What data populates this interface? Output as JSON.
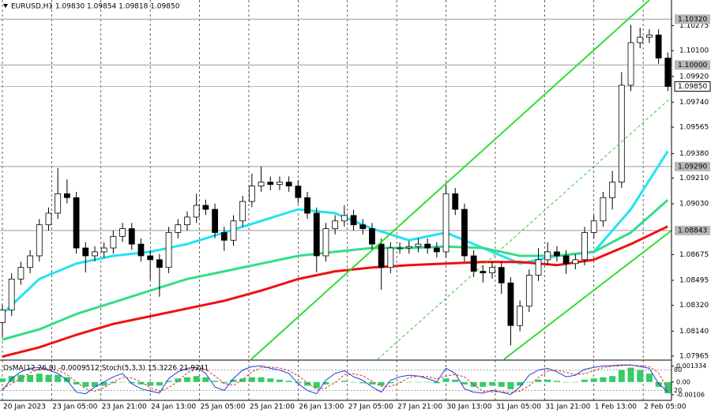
{
  "chart_data": {
    "type": "candlestick",
    "title": "EURUSD,H1  1.09830 1.09854 1.09818 1.09850",
    "indicator_title": "OsMA(12,26,9) -0.0009512  Stoch(5,3,3) 15.3226 21.9241",
    "hours": [
      0,
      3,
      6,
      9,
      12,
      15,
      18,
      21,
      24,
      27,
      30,
      33,
      36,
      39,
      42,
      45,
      48,
      51,
      54,
      57,
      60,
      63,
      66,
      69,
      72,
      75,
      78,
      81,
      84,
      87,
      90,
      93,
      96,
      99,
      102,
      105,
      108,
      111,
      114,
      117,
      120,
      123,
      126,
      129,
      132,
      135,
      138,
      141,
      144,
      147,
      150,
      153,
      156,
      159,
      162,
      165,
      168,
      171,
      174,
      177,
      180,
      183,
      186,
      189,
      192,
      195,
      198,
      201,
      204,
      207,
      210,
      213,
      216
    ],
    "open": [
      1.082,
      1.08287,
      1.08504,
      1.08585,
      1.08666,
      1.08883,
      1.08964,
      1.091,
      1.09073,
      1.08721,
      1.08666,
      1.08694,
      1.08721,
      1.08802,
      1.08856,
      1.08748,
      1.08666,
      1.08639,
      1.08585,
      1.08829,
      1.08883,
      1.08937,
      1.09019,
      1.08991,
      1.08829,
      1.08775,
      1.0891,
      1.09046,
      1.09154,
      1.09181,
      1.09165,
      1.09181,
      1.09154,
      1.09073,
      1.08964,
      1.08666,
      1.08856,
      1.0891,
      1.08948,
      1.08883,
      1.08856,
      1.08748,
      1.08585,
      1.08721,
      1.08721,
      1.08731,
      1.08748,
      1.08721,
      1.08694,
      1.091,
      1.08991,
      1.08666,
      1.08558,
      1.08547,
      1.08585,
      1.08477,
      1.08179,
      1.08314,
      1.08531,
      1.08639,
      1.08694,
      1.08666,
      1.08612,
      1.08639,
      1.08829,
      1.0891,
      1.09073,
      1.09181,
      1.09858,
      1.10156,
      1.10194,
      1.1021,
      1.10048
    ],
    "high": [
      1.08327,
      1.08544,
      1.08625,
      1.08706,
      1.08923,
      1.09004,
      1.0928,
      1.092,
      1.09113,
      1.08761,
      1.08734,
      1.08761,
      1.08842,
      1.08896,
      1.08896,
      1.08788,
      1.08706,
      1.08679,
      1.08869,
      1.08923,
      1.08977,
      1.091,
      1.09059,
      1.09031,
      1.08869,
      1.0895,
      1.09086,
      1.0924,
      1.0929,
      1.09221,
      1.09221,
      1.09221,
      1.09194,
      1.09113,
      1.09004,
      1.08896,
      1.0895,
      1.0902,
      1.08988,
      1.08923,
      1.08896,
      1.08788,
      1.08761,
      1.08761,
      1.08771,
      1.08788,
      1.08788,
      1.08761,
      1.0916,
      1.0914,
      1.09031,
      1.08706,
      1.08598,
      1.08625,
      1.08625,
      1.08517,
      1.08354,
      1.08571,
      1.0872,
      1.0876,
      1.08734,
      1.08706,
      1.08679,
      1.08869,
      1.0895,
      1.09113,
      1.0926,
      1.0995,
      1.1028,
      1.1026,
      1.1025,
      1.1025,
      1.10088
    ],
    "low": [
      1.081,
      1.08247,
      1.08464,
      1.08545,
      1.08626,
      1.08843,
      1.08924,
      1.09033,
      1.08681,
      1.0855,
      1.08626,
      1.08654,
      1.08681,
      1.08762,
      1.08708,
      1.08626,
      1.085,
      1.0838,
      1.08545,
      1.08789,
      1.08843,
      1.08897,
      1.08951,
      1.08789,
      1.087,
      1.08735,
      1.0887,
      1.09006,
      1.09114,
      1.09125,
      1.09125,
      1.09114,
      1.09033,
      1.08924,
      1.0855,
      1.08626,
      1.08816,
      1.0887,
      1.08843,
      1.08816,
      1.08708,
      1.0843,
      1.08545,
      1.08681,
      1.08681,
      1.08691,
      1.08681,
      1.08654,
      1.08654,
      1.08951,
      1.08626,
      1.08518,
      1.0848,
      1.08507,
      1.084,
      1.0804,
      1.08139,
      1.08274,
      1.08491,
      1.08599,
      1.08626,
      1.0854,
      1.08572,
      1.08599,
      1.08789,
      1.0887,
      1.0899,
      1.09141,
      1.09818,
      1.10116,
      1.10154,
      1.10008,
      1.09818
    ],
    "close": [
      1.08287,
      1.08504,
      1.08585,
      1.08666,
      1.08883,
      1.08964,
      1.091,
      1.09073,
      1.08721,
      1.08666,
      1.08694,
      1.08721,
      1.08802,
      1.08856,
      1.08748,
      1.08666,
      1.08639,
      1.08585,
      1.08829,
      1.08883,
      1.08937,
      1.09019,
      1.08991,
      1.08829,
      1.08775,
      1.0891,
      1.09046,
      1.09154,
      1.09181,
      1.09165,
      1.09181,
      1.09154,
      1.09073,
      1.08964,
      1.08666,
      1.08856,
      1.0891,
      1.08948,
      1.08883,
      1.08856,
      1.08748,
      1.08585,
      1.08721,
      1.08721,
      1.08731,
      1.08748,
      1.08721,
      1.08694,
      1.091,
      1.08991,
      1.08666,
      1.08558,
      1.08547,
      1.08585,
      1.08477,
      1.08179,
      1.08314,
      1.08531,
      1.08639,
      1.08694,
      1.08666,
      1.08612,
      1.08639,
      1.08829,
      1.0891,
      1.09073,
      1.09181,
      1.09858,
      1.10156,
      1.10194,
      1.1021,
      1.10048,
      1.0985
    ],
    "up_color": "#ffffff",
    "down_color": "#000000",
    "ma_hours": [
      0,
      12,
      24,
      36,
      48,
      60,
      72,
      84,
      96,
      108,
      120,
      132,
      144,
      156,
      168,
      180,
      192,
      204,
      216
    ],
    "series": [
      {
        "color": "#22e3f0",
        "values": [
          1.0826,
          1.08504,
          1.08612,
          1.08666,
          1.08694,
          1.08748,
          1.08829,
          1.0891,
          1.08991,
          1.08964,
          1.08856,
          1.08775,
          1.08829,
          1.08721,
          1.08612,
          1.08666,
          1.08694,
          1.08991,
          1.09398
        ]
      },
      {
        "color": "#33dd88",
        "values": [
          1.08081,
          1.08152,
          1.0826,
          1.08341,
          1.08423,
          1.08504,
          1.08558,
          1.08612,
          1.08666,
          1.08694,
          1.08721,
          1.08721,
          1.08731,
          1.08721,
          1.08666,
          1.08666,
          1.08694,
          1.08829,
          1.09056
        ]
      },
      {
        "color": "#ee1111",
        "values": [
          1.07962,
          1.08027,
          1.08114,
          1.0819,
          1.08244,
          1.08298,
          1.08352,
          1.08423,
          1.08504,
          1.08558,
          1.08585,
          1.08601,
          1.08612,
          1.08623,
          1.08623,
          1.08601,
          1.08639,
          1.08748,
          1.08872
        ]
      }
    ],
    "xlim": [
      -0.77,
      217.2
    ],
    "ylim": [
      1.07943,
      1.10454
    ],
    "yticks": [
      1.10275,
      {
        "value": 1.101,
        "label": "1.10100"
      },
      {
        "value": 1.0992,
        "label": "1.09920"
      },
      {
        "value": 1.0974,
        "label": "1.09740"
      },
      1.09565,
      {
        "value": 1.0938,
        "label": "1.09380"
      },
      {
        "value": 1.0921,
        "label": "1.09210"
      },
      {
        "value": 1.0903,
        "label": "1.09030"
      },
      1.08675,
      1.08495,
      {
        "value": 1.0832,
        "label": "1.08320"
      },
      {
        "value": 1.0814,
        "label": "1.08140"
      },
      1.07965
    ],
    "levels": [
      {
        "value": 1.1032,
        "label": "1.10320"
      },
      {
        "value": 1.1,
        "label": "1.10000"
      },
      {
        "value": 1.0929,
        "label": "1.09290"
      },
      1.08843
    ],
    "current_price": {
      "value": 1.0985,
      "label": "1.09850"
    },
    "xticks": [
      {
        "value": 0,
        "label": "20 Jan 2023"
      },
      {
        "value": 16,
        "label": "23 Jan 05:00"
      },
      {
        "value": 32,
        "label": "23 Jan 21:00"
      },
      {
        "value": 48,
        "label": "24 Jan 13:00"
      },
      {
        "value": 64,
        "label": "25 Jan 05:00"
      },
      {
        "value": 80,
        "label": "25 Jan 21:00"
      },
      {
        "value": 96,
        "label": "26 Jan 13:00"
      },
      {
        "value": 112,
        "label": "27 Jan 05:00"
      },
      {
        "value": 128,
        "label": "27 Jan 21:00"
      },
      {
        "value": 144,
        "label": "30 Jan 13:00"
      },
      {
        "value": 160,
        "label": "31 Jan 05:00"
      },
      {
        "value": 176,
        "label": "31 Jan 21:00"
      },
      {
        "value": 192,
        "label": "1 Feb 13:00"
      },
      {
        "value": 208,
        "label": "2 Feb 05:00"
      }
    ],
    "osma": {
      "color": "#33cc66",
      "values": [
        0.0003,
        0.0005,
        0.0006,
        0.0006,
        0.0007,
        0.0006,
        0.0006,
        0.0004,
        -0.0002,
        -0.0004,
        -0.0004,
        -0.0003,
        -0.0001,
        0,
        -0.0001,
        -0.0002,
        -0.0003,
        -0.0003,
        0.0001,
        0.0003,
        0.0004,
        0.0005,
        0.0004,
        0.0001,
        -0.0001,
        0.0002,
        0.0003,
        0.0004,
        0.0004,
        0.0003,
        0.0002,
        0.0001,
        -0.0001,
        -0.0003,
        -0.0005,
        -0.0002,
        0,
        0.0001,
        0,
        -0.0001,
        -0.0002,
        -0.0003,
        -0.0001,
        0,
        0,
        0,
        0,
        -0.0001,
        0.0003,
        0.0002,
        -0.0002,
        -0.0004,
        -0.0004,
        -0.0003,
        -0.0004,
        -0.0006,
        -0.0003,
        0,
        0.0002,
        0.0002,
        0.0001,
        0,
        0,
        0.0002,
        0.0003,
        0.0004,
        0.0005,
        0.001,
        0.0012,
        0.001,
        0.0007,
        -0.0004,
        -0.0009512
      ]
    },
    "osma_ylim": [
      -0.0014,
      0.0017
    ],
    "osma_yticks": [
      0.001334,
      {
        "value": 0,
        "label": "0.00"
      },
      -0.00106
    ],
    "stoch": [
      {
        "color": "#1a3fd4",
        "values": [
          20,
          55,
          75,
          85,
          88,
          80,
          70,
          50,
          15,
          10,
          30,
          45,
          60,
          70,
          40,
          25,
          18,
          12,
          55,
          75,
          85,
          88,
          70,
          30,
          20,
          55,
          80,
          90,
          92,
          85,
          80,
          70,
          40,
          20,
          10,
          50,
          70,
          78,
          60,
          50,
          30,
          15,
          50,
          60,
          65,
          62,
          55,
          45,
          85,
          70,
          25,
          15,
          12,
          20,
          15,
          8,
          30,
          65,
          80,
          85,
          75,
          60,
          65,
          82,
          88,
          92,
          93,
          95,
          95,
          90,
          85,
          40,
          15.3226
        ]
      },
      {
        "color": "#e03030",
        "values": [
          25,
          40,
          55,
          72,
          83,
          84,
          79,
          67,
          45,
          25,
          18,
          28,
          45,
          58,
          57,
          45,
          28,
          18,
          28,
          47,
          72,
          83,
          81,
          63,
          40,
          35,
          52,
          75,
          87,
          89,
          86,
          78,
          63,
          43,
          23,
          27,
          43,
          66,
          69,
          63,
          47,
          32,
          32,
          42,
          58,
          62,
          61,
          54,
          62,
          67,
          60,
          37,
          17,
          16,
          16,
          14,
          18,
          34,
          58,
          77,
          80,
          73,
          67,
          69,
          78,
          87,
          91,
          93,
          94,
          93,
          90,
          72,
          21.9241
        ]
      }
    ],
    "stoch_ylim": [
      0,
      100
    ],
    "stoch_levels": [
      80,
      20
    ],
    "grid": true
  }
}
